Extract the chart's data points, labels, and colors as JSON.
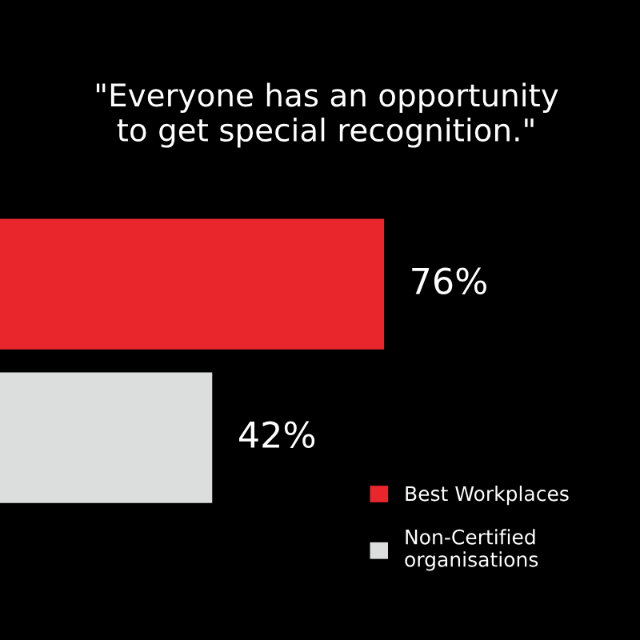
{
  "chart_data": {
    "type": "bar",
    "orientation": "horizontal",
    "stacked": true,
    "title": "\"Everyone has an opportunity\nto get special recognition.\"",
    "categories": [
      null,
      null
    ],
    "series": [
      {
        "name": "Best Workplaces",
        "color": "#e8262c",
        "values": [
          76,
          null
        ],
        "value_labels": [
          "76%",
          null
        ]
      },
      {
        "name": "Non-Certified\norganisations",
        "color": "#dcdedd",
        "values": [
          null,
          42
        ],
        "value_labels": [
          null,
          "42%"
        ]
      }
    ],
    "legend": "bottom right"
  }
}
